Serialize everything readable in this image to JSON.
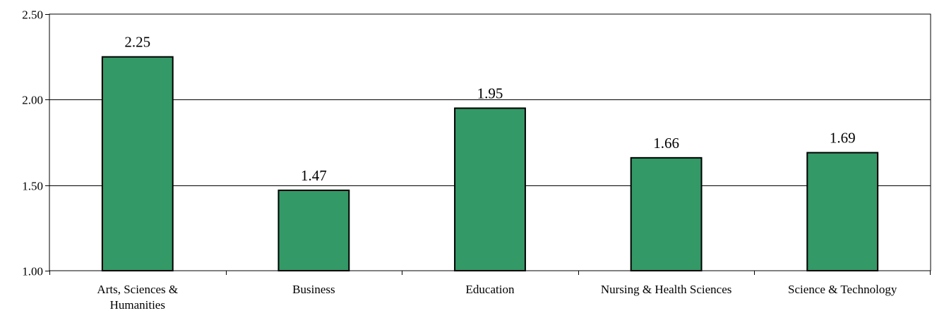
{
  "chart_data": {
    "type": "bar",
    "title": "",
    "xlabel": "",
    "ylabel": "",
    "categories": [
      [
        "Arts, Sciences &",
        "Humanities"
      ],
      [
        "Business"
      ],
      [
        "Education"
      ],
      [
        "Nursing & Health Sciences"
      ],
      [
        "Science & Technology"
      ]
    ],
    "values": [
      2.25,
      1.47,
      1.95,
      1.66,
      1.69
    ],
    "data_labels": [
      "2.25",
      "1.47",
      "1.95",
      "1.66",
      "1.69"
    ],
    "ylim": [
      1.0,
      2.5
    ],
    "yticks": [
      1.0,
      1.5,
      2.0,
      2.5
    ],
    "ytick_labels": [
      "1.00",
      "1.50",
      "2.00",
      "2.50"
    ],
    "grid": true,
    "legend": "none",
    "colors": {
      "bar_fill": "#339966",
      "bar_stroke": "#000000",
      "grid": "#000000",
      "axis": "#000000"
    }
  }
}
